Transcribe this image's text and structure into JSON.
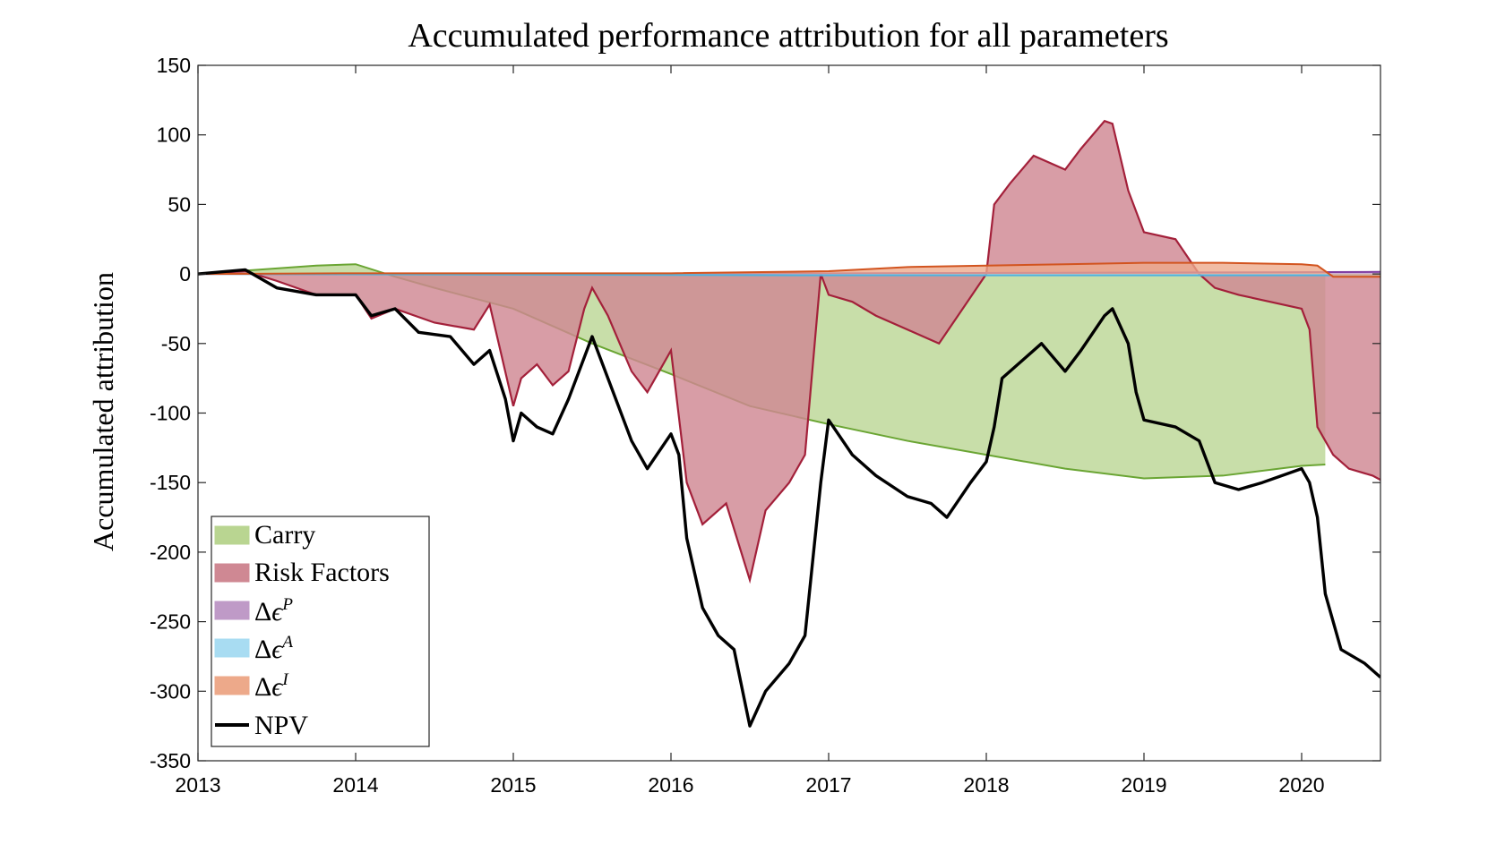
{
  "chart_data": {
    "type": "area",
    "title": "Accumulated performance attribution for all parameters",
    "xlabel": "",
    "ylabel": "Accumulated attribution",
    "xlim": [
      2013,
      2020.5
    ],
    "ylim": [
      -350,
      150
    ],
    "x_ticks": [
      "2013",
      "2014",
      "2015",
      "2016",
      "2017",
      "2018",
      "2019",
      "2020"
    ],
    "y_ticks": [
      "150",
      "100",
      "50",
      "0",
      "-50",
      "-100",
      "-150",
      "-200",
      "-250",
      "-300",
      "-350"
    ],
    "grid": false,
    "legend_position": "bottom-left",
    "series": [
      {
        "name": "Carry",
        "kind": "area",
        "color": "#b9d591",
        "edge_color": "#6aa533",
        "x": [
          2013.0,
          2013.5,
          2013.75,
          2014.0,
          2014.25,
          2014.5,
          2015.0,
          2015.5,
          2016.0,
          2016.5,
          2017.0,
          2017.5,
          2018.0,
          2018.5,
          2019.0,
          2019.5,
          2020.0,
          2020.15
        ],
        "y": [
          0,
          4,
          6,
          7,
          -2,
          -10,
          -25,
          -50,
          -72,
          -95,
          -108,
          -120,
          -130,
          -140,
          -147,
          -145,
          -138,
          -137
        ]
      },
      {
        "name": "Risk Factors",
        "kind": "area",
        "color": "#cf8893",
        "edge_color": "#a3203a",
        "x": [
          2013.0,
          2013.3,
          2013.5,
          2013.75,
          2014.0,
          2014.1,
          2014.25,
          2014.5,
          2014.75,
          2014.85,
          2015.0,
          2015.05,
          2015.15,
          2015.25,
          2015.35,
          2015.45,
          2015.5,
          2015.6,
          2015.75,
          2015.85,
          2016.0,
          2016.1,
          2016.2,
          2016.35,
          2016.5,
          2016.6,
          2016.75,
          2016.85,
          2016.95,
          2017.0,
          2017.15,
          2017.3,
          2017.5,
          2017.7,
          2017.85,
          2018.0,
          2018.05,
          2018.15,
          2018.3,
          2018.5,
          2018.6,
          2018.75,
          2018.8,
          2018.9,
          2019.0,
          2019.2,
          2019.35,
          2019.45,
          2019.6,
          2019.8,
          2020.0,
          2020.05,
          2020.1,
          2020.2,
          2020.3,
          2020.45,
          2020.5
        ],
        "y": [
          0,
          2,
          -5,
          -15,
          -15,
          -32,
          -25,
          -35,
          -40,
          -22,
          -95,
          -75,
          -65,
          -80,
          -70,
          -25,
          -10,
          -30,
          -70,
          -85,
          -55,
          -150,
          -180,
          -165,
          -220,
          -170,
          -150,
          -130,
          0,
          -15,
          -20,
          -30,
          -40,
          -50,
          -25,
          0,
          50,
          65,
          85,
          75,
          90,
          110,
          108,
          60,
          30,
          25,
          0,
          -10,
          -15,
          -20,
          -25,
          -40,
          -110,
          -130,
          -140,
          -145,
          -148
        ]
      },
      {
        "name": "Δϵ^P",
        "kind": "area",
        "color": "#bf9ac7",
        "edge_color": "#7d3aa0",
        "x": [
          2013.0,
          2015.0,
          2017.0,
          2019.0,
          2020.5
        ],
        "y": [
          0,
          0,
          0.5,
          1,
          1.5
        ]
      },
      {
        "name": "Δϵ^A",
        "kind": "area",
        "color": "#a8dcf2",
        "edge_color": "#4fb2dd",
        "x": [
          2013.0,
          2015.0,
          2017.0,
          2019.0,
          2020.5
        ],
        "y": [
          0,
          -0.5,
          -1,
          -1,
          -1
        ]
      },
      {
        "name": "Δϵ^I",
        "kind": "area",
        "color": "#eda98a",
        "edge_color": "#d2541f",
        "x": [
          2013.0,
          2014.0,
          2015.0,
          2016.0,
          2017.0,
          2017.5,
          2018.0,
          2018.5,
          2019.0,
          2019.5,
          2020.0,
          2020.1,
          2020.2,
          2020.5
        ],
        "y": [
          0,
          0.5,
          0.5,
          0.5,
          2,
          5,
          6,
          7,
          8,
          8,
          7,
          6,
          -2,
          -2
        ]
      },
      {
        "name": "NPV",
        "kind": "line",
        "color": "#000000",
        "x": [
          2013.0,
          2013.3,
          2013.5,
          2013.75,
          2014.0,
          2014.1,
          2014.25,
          2014.4,
          2014.6,
          2014.75,
          2014.85,
          2014.95,
          2015.0,
          2015.05,
          2015.15,
          2015.25,
          2015.35,
          2015.45,
          2015.5,
          2015.6,
          2015.75,
          2015.85,
          2016.0,
          2016.05,
          2016.1,
          2016.2,
          2016.3,
          2016.4,
          2016.5,
          2016.6,
          2016.75,
          2016.85,
          2016.95,
          2017.0,
          2017.15,
          2017.3,
          2017.5,
          2017.65,
          2017.75,
          2017.9,
          2018.0,
          2018.05,
          2018.1,
          2018.2,
          2018.35,
          2018.5,
          2018.6,
          2018.75,
          2018.8,
          2018.9,
          2018.95,
          2019.0,
          2019.2,
          2019.35,
          2019.45,
          2019.6,
          2019.75,
          2020.0,
          2020.05,
          2020.1,
          2020.15,
          2020.25,
          2020.4,
          2020.5
        ],
        "y": [
          0,
          3,
          -10,
          -15,
          -15,
          -30,
          -25,
          -42,
          -45,
          -65,
          -55,
          -90,
          -120,
          -100,
          -110,
          -115,
          -90,
          -60,
          -45,
          -75,
          -120,
          -140,
          -115,
          -130,
          -190,
          -240,
          -260,
          -270,
          -325,
          -300,
          -280,
          -260,
          -150,
          -105,
          -130,
          -145,
          -160,
          -165,
          -175,
          -150,
          -135,
          -110,
          -75,
          -65,
          -50,
          -70,
          -55,
          -30,
          -25,
          -50,
          -85,
          -105,
          -110,
          -120,
          -150,
          -155,
          -150,
          -140,
          -150,
          -175,
          -230,
          -270,
          -280,
          -290
        ]
      }
    ],
    "annotations": []
  }
}
